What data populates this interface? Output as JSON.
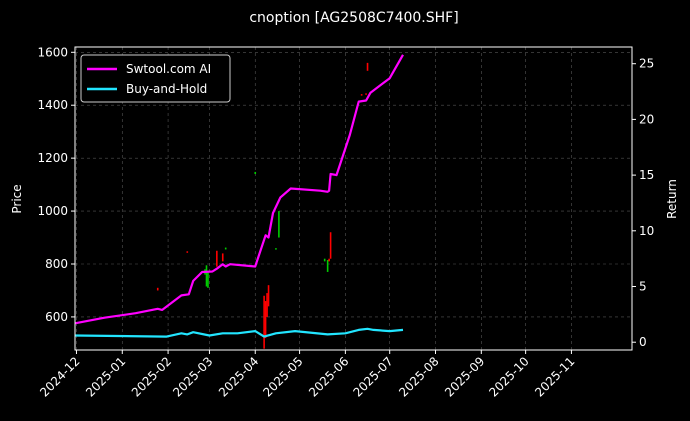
{
  "chart_data": {
    "type": "line",
    "title": "cnoption [AG2508C7400.SHF]",
    "ylabel_left": "Price",
    "ylabel_right": "Return",
    "x_ticks": [
      "2024-12",
      "2025-01",
      "2025-02",
      "2025-03",
      "2025-04",
      "2025-05",
      "2025-06",
      "2025-07",
      "2025-08",
      "2025-09",
      "2025-10",
      "2025-11"
    ],
    "x_range": [
      "2024-11-30",
      "2025-12-12"
    ],
    "y_left_ticks": [
      600,
      800,
      1000,
      1200,
      1400,
      1600
    ],
    "y_left_range": [
      475,
      1620
    ],
    "y_right_ticks": [
      0,
      5,
      10,
      15,
      20,
      25
    ],
    "y_right_range": [
      -0.7,
      26.5
    ],
    "grid": true,
    "legend_position": "top-left",
    "legend": [
      "Swtool.com AI",
      "Buy-and-Hold"
    ],
    "colors": {
      "ai": "#ff00ff",
      "bh": "#22e5ff",
      "up": "#00cc00",
      "down": "#ff0000",
      "grid": "#555555"
    },
    "series": [
      {
        "name": "Swtool.com AI",
        "axis": "right",
        "points": [
          [
            "2024-11-30",
            1.7
          ],
          [
            "2024-12-20",
            2.2
          ],
          [
            "2025-01-10",
            2.6
          ],
          [
            "2025-01-25",
            3.0
          ],
          [
            "2025-01-28",
            2.9
          ],
          [
            "2025-02-10",
            4.2
          ],
          [
            "2025-02-15",
            4.3
          ],
          [
            "2025-02-18",
            5.5
          ],
          [
            "2025-02-24",
            6.3
          ],
          [
            "2025-03-03",
            6.35
          ],
          [
            "2025-03-06",
            6.6
          ],
          [
            "2025-03-10",
            7.0
          ],
          [
            "2025-03-12",
            6.8
          ],
          [
            "2025-03-15",
            7.0
          ],
          [
            "2025-04-01",
            6.8
          ],
          [
            "2025-04-08",
            9.6
          ],
          [
            "2025-04-10",
            9.4
          ],
          [
            "2025-04-13",
            11.6
          ],
          [
            "2025-04-18",
            13.0
          ],
          [
            "2025-04-25",
            13.8
          ],
          [
            "2025-05-15",
            13.6
          ],
          [
            "2025-05-20",
            13.5
          ],
          [
            "2025-05-21",
            13.6
          ],
          [
            "2025-05-22",
            15.1
          ],
          [
            "2025-05-26",
            15.0
          ],
          [
            "2025-06-04",
            18.6
          ],
          [
            "2025-06-10",
            21.6
          ],
          [
            "2025-06-15",
            21.7
          ],
          [
            "2025-06-18",
            22.4
          ],
          [
            "2025-07-01",
            23.7
          ],
          [
            "2025-07-10",
            25.8
          ]
        ]
      },
      {
        "name": "Buy-and-Hold",
        "axis": "right",
        "points": [
          [
            "2024-11-30",
            0.6
          ],
          [
            "2025-01-31",
            0.5
          ],
          [
            "2025-02-10",
            0.8
          ],
          [
            "2025-02-14",
            0.7
          ],
          [
            "2025-02-18",
            0.9
          ],
          [
            "2025-03-01",
            0.6
          ],
          [
            "2025-03-10",
            0.8
          ],
          [
            "2025-03-20",
            0.8
          ],
          [
            "2025-04-01",
            1.0
          ],
          [
            "2025-04-07",
            0.5
          ],
          [
            "2025-04-15",
            0.8
          ],
          [
            "2025-04-28",
            1.0
          ],
          [
            "2025-05-20",
            0.7
          ],
          [
            "2025-06-01",
            0.8
          ],
          [
            "2025-06-10",
            1.1
          ],
          [
            "2025-06-16",
            1.2
          ],
          [
            "2025-06-20",
            1.1
          ],
          [
            "2025-07-01",
            1.0
          ],
          [
            "2025-07-10",
            1.1
          ]
        ]
      }
    ],
    "candles": [
      {
        "x": "2025-01-25",
        "lo": 700,
        "hi": 710,
        "dir": "down"
      },
      {
        "x": "2025-02-14",
        "lo": 843,
        "hi": 848,
        "dir": "down"
      },
      {
        "x": "2025-02-26",
        "lo": 760,
        "hi": 780,
        "dir": "up"
      },
      {
        "x": "2025-02-27",
        "lo": 715,
        "hi": 795,
        "dir": "up"
      },
      {
        "x": "2025-02-28",
        "lo": 710,
        "hi": 770,
        "dir": "up"
      },
      {
        "x": "2025-03-06",
        "lo": 790,
        "hi": 850,
        "dir": "down"
      },
      {
        "x": "2025-03-10",
        "lo": 810,
        "hi": 840,
        "dir": "down"
      },
      {
        "x": "2025-03-12",
        "lo": 855,
        "hi": 862,
        "dir": "up"
      },
      {
        "x": "2025-04-01",
        "lo": 1140,
        "hi": 1148,
        "dir": "up"
      },
      {
        "x": "2025-04-07",
        "lo": 480,
        "hi": 680,
        "dir": "down"
      },
      {
        "x": "2025-04-08",
        "lo": 520,
        "hi": 660,
        "dir": "down"
      },
      {
        "x": "2025-04-09",
        "lo": 600,
        "hi": 690,
        "dir": "down"
      },
      {
        "x": "2025-04-10",
        "lo": 640,
        "hi": 720,
        "dir": "down"
      },
      {
        "x": "2025-04-15",
        "lo": 855,
        "hi": 860,
        "dir": "up"
      },
      {
        "x": "2025-04-17",
        "lo": 900,
        "hi": 1000,
        "dir": "up"
      },
      {
        "x": "2025-05-18",
        "lo": 810,
        "hi": 820,
        "dir": "up"
      },
      {
        "x": "2025-05-20",
        "lo": 770,
        "hi": 815,
        "dir": "up"
      },
      {
        "x": "2025-05-21",
        "lo": 810,
        "hi": 820,
        "dir": "down"
      },
      {
        "x": "2025-05-22",
        "lo": 820,
        "hi": 920,
        "dir": "down"
      },
      {
        "x": "2025-06-12",
        "lo": 1438,
        "hi": 1442,
        "dir": "down"
      },
      {
        "x": "2025-06-16",
        "lo": 1530,
        "hi": 1560,
        "dir": "down"
      },
      {
        "x": "2025-06-15",
        "lo": 1440,
        "hi": 1445,
        "dir": "down"
      }
    ]
  }
}
